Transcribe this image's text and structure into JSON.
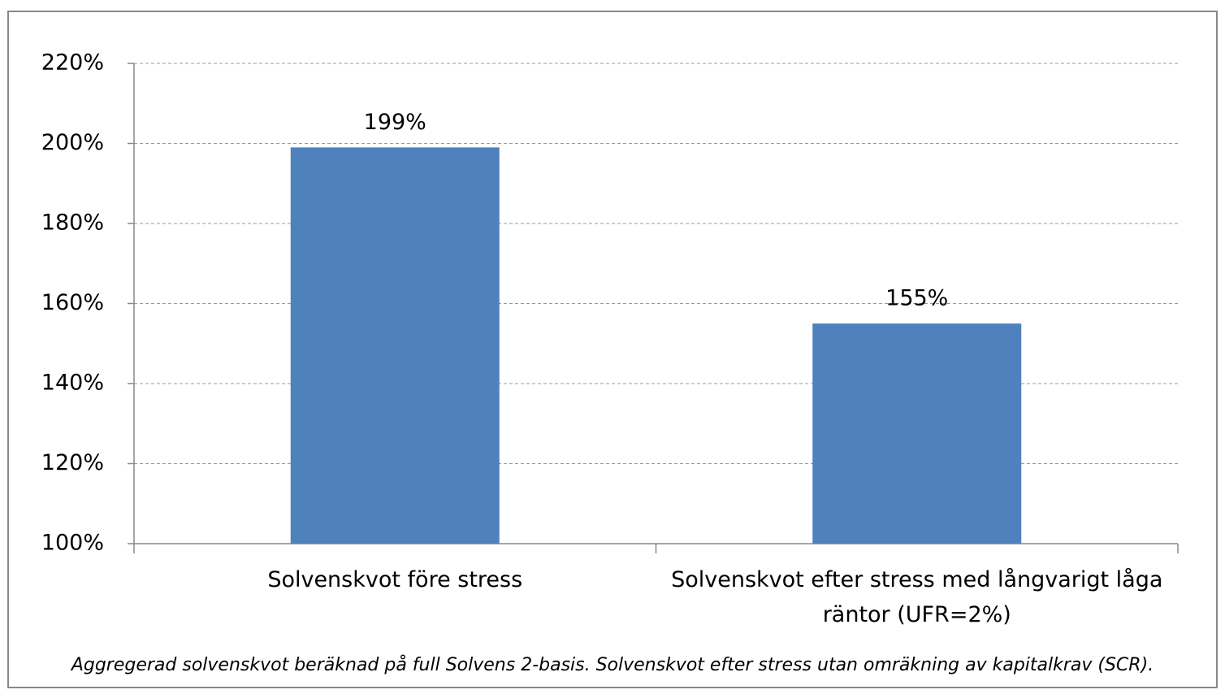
{
  "chart_data": {
    "type": "bar",
    "categories": [
      "Solvenskvot före stress",
      "Solvenskvot efter stress med långvarigt låga räntor (UFR=2%)"
    ],
    "values": [
      199,
      155
    ],
    "value_labels": [
      "199%",
      "155%"
    ],
    "color": "#4f81bd",
    "ylim": [
      100,
      220
    ],
    "yticks": [
      {
        "value": 100,
        "label": "100%"
      },
      {
        "value": 120,
        "label": "120%"
      },
      {
        "value": 140,
        "label": "140%"
      },
      {
        "value": 160,
        "label": "160%"
      },
      {
        "value": 180,
        "label": "180%"
      },
      {
        "value": 200,
        "label": "200%"
      },
      {
        "value": 220,
        "label": "220%"
      }
    ],
    "grid": true,
    "annotation": "Aggregerad solvenskvot beräknad på full Solvens 2-basis. Solvenskvot efter stress utan omräkning av kapitalkrav (SCR)."
  }
}
